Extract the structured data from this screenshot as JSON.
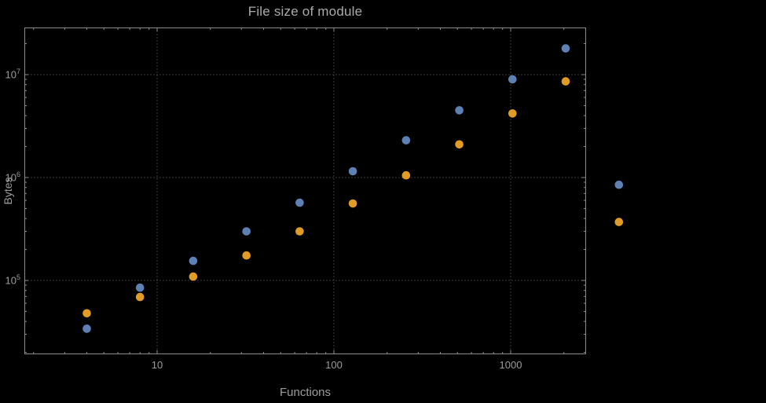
{
  "chart_data": {
    "type": "scatter",
    "title": "File size of module",
    "xlabel": "Functions",
    "ylabel": "Bytes",
    "xscale": "log",
    "yscale": "log",
    "grid": true,
    "legend": "none",
    "xlim": [
      1.8,
      2660
    ],
    "ylim": [
      19000,
      28000000
    ],
    "x_ticks": [
      10,
      100,
      1000
    ],
    "x_tick_labels": [
      "10",
      "100",
      "1000"
    ],
    "y_ticks": [
      100000,
      1000000,
      10000000
    ],
    "y_tick_exponents": [
      5,
      6,
      7
    ],
    "series": [
      {
        "name": "blue",
        "color": "#5e81b5",
        "points": [
          [
            4,
            34000
          ],
          [
            8,
            85000
          ],
          [
            16,
            155000
          ],
          [
            32,
            300000
          ],
          [
            64,
            570000
          ],
          [
            128,
            1150000
          ],
          [
            256,
            2300000
          ],
          [
            512,
            4500000
          ],
          [
            1024,
            9000000
          ],
          [
            2048,
            18000000
          ],
          [
            4096,
            850000
          ]
        ]
      },
      {
        "name": "orange",
        "color": "#e09c24",
        "points": [
          [
            4,
            48000
          ],
          [
            8,
            69000
          ],
          [
            16,
            109000
          ],
          [
            32,
            175000
          ],
          [
            64,
            300000
          ],
          [
            128,
            560000
          ],
          [
            256,
            1050000
          ],
          [
            512,
            2100000
          ],
          [
            1024,
            4200000
          ],
          [
            2048,
            8600000
          ],
          [
            4096,
            370000
          ]
        ]
      }
    ]
  },
  "colors": {
    "background": "#000000",
    "frame": "#8c8c8c",
    "grid": "#6e6e6e",
    "text": "#9c9c9c",
    "title": "#ababab"
  }
}
